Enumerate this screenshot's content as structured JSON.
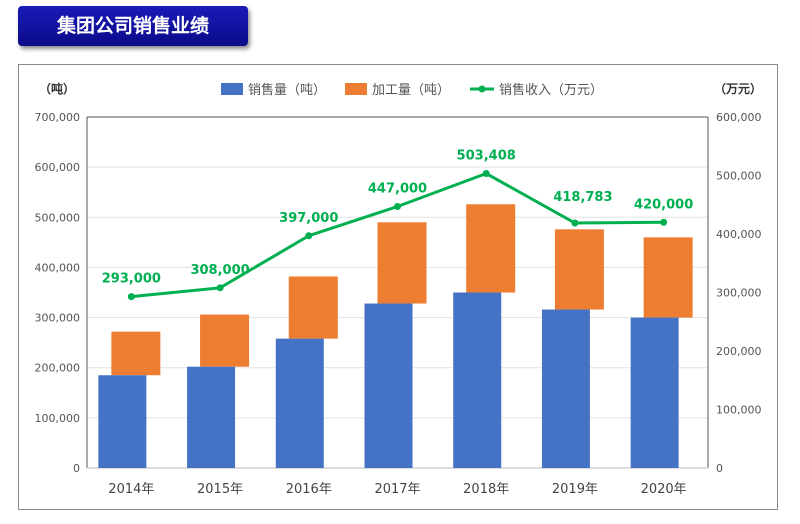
{
  "title": "集团公司销售业绩",
  "chart_data": {
    "type": "bar",
    "categories": [
      "2014年",
      "2015年",
      "2016年",
      "2017年",
      "2018年",
      "2019年",
      "2020年"
    ],
    "left_axis": {
      "label": "（吨）",
      "ylim": [
        0,
        700000
      ],
      "ticks": [
        "0",
        "100,000",
        "200,000",
        "300,000",
        "400,000",
        "500,000",
        "600,000",
        "700,000"
      ]
    },
    "right_axis": {
      "label": "（万元）",
      "ylim": [
        0,
        600000
      ],
      "ticks": [
        "0",
        "100,000",
        "200,000",
        "300,000",
        "400,000",
        "500,000",
        "600,000"
      ]
    },
    "series": [
      {
        "name": "销售量（吨）",
        "type": "bar",
        "axis": "left",
        "color": "#4472c4",
        "values": [
          185000,
          202000,
          258000,
          328000,
          350000,
          316000,
          300000
        ]
      },
      {
        "name": "加工量（吨）",
        "type": "bar",
        "axis": "left",
        "stacked_on": "销售量（吨）",
        "color": "#ed7d31",
        "values": [
          87000,
          104000,
          124000,
          162000,
          176000,
          160000,
          160000
        ]
      },
      {
        "name": "销售收入（万元）",
        "type": "line",
        "axis": "right",
        "color": "#00b050",
        "values": [
          293000,
          308000,
          397000,
          447000,
          503408,
          418783,
          420000
        ],
        "labels": [
          "293,000",
          "308,000",
          "397,000",
          "447,000",
          "503,408",
          "418,783",
          "420,000"
        ]
      }
    ],
    "grid": true,
    "legend": "top"
  }
}
